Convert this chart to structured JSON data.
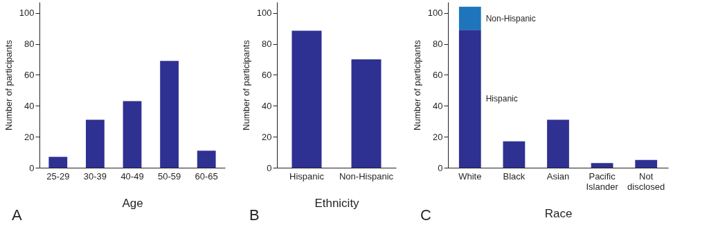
{
  "chart_data": [
    {
      "type": "bar",
      "categories": [
        "25-29",
        "30-39",
        "40-49",
        "50-59",
        "60-65"
      ],
      "values": [
        7,
        31,
        43,
        69,
        11
      ],
      "color": "#2e3192",
      "xlabel": "Age",
      "ylabel": "Number of participants",
      "ylim": [
        0,
        107
      ],
      "yticks": [
        0,
        20,
        40,
        60,
        80,
        100
      ],
      "grid": false,
      "annotations": [
        "A"
      ]
    },
    {
      "type": "bar",
      "categories": [
        "Hispanic",
        "Non-Hispanic"
      ],
      "values": [
        88.5,
        70
      ],
      "color": "#2e3192",
      "xlabel": "Ethnicity",
      "ylabel": "Number of participants",
      "ylim": [
        0,
        107
      ],
      "yticks": [
        0,
        20,
        40,
        60,
        80,
        100
      ],
      "grid": false,
      "annotations": [
        "B"
      ]
    },
    {
      "type": "bar",
      "stacked": true,
      "categories": [
        "White",
        "Black",
        "Asian",
        "Pacific Islander",
        "Not disclosed"
      ],
      "series": [
        {
          "color": "#2e3192",
          "values": [
            null,
            17,
            31,
            3,
            5
          ]
        },
        {
          "name": "Hispanic",
          "color": "#2e3192",
          "values": [
            89,
            null,
            null,
            null,
            null
          ]
        },
        {
          "name": "Non-Hispanic",
          "color": "#1f75bb",
          "values": [
            15,
            null,
            null,
            null,
            null
          ]
        }
      ],
      "xlabel": "Race",
      "ylabel": "Number of participants",
      "ylim": [
        0,
        107
      ],
      "yticks": [
        0,
        20,
        40,
        60,
        80,
        100
      ],
      "grid": false,
      "annotations": [
        "C"
      ]
    }
  ]
}
